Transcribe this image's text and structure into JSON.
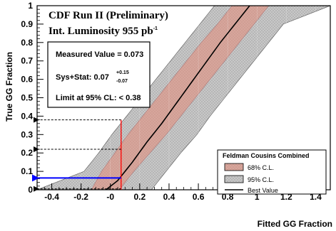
{
  "chart_data": {
    "type": "line",
    "title_line1": "CDF Run II (Preliminary)",
    "title_line2_prefix": "Int. Luminosity 955 pb",
    "title_line2_sup": "-1",
    "xlabel": "Fitted GG Fraction",
    "ylabel": "True GG Fraction",
    "xlim": [
      -0.5,
      1.5
    ],
    "ylim": [
      0,
      1
    ],
    "x_ticks": [
      -0.4,
      -0.2,
      0,
      0.2,
      0.4,
      0.6,
      0.8,
      1,
      1.2,
      1.4
    ],
    "x_tick_labels": [
      "-0.4",
      "-0.2",
      "-0",
      "0.2",
      "0.4",
      "0.6",
      "0.8",
      "1",
      "1.2",
      "1.4"
    ],
    "y_ticks": [
      0,
      0.1,
      0.2,
      0.3,
      0.4,
      0.5,
      0.6,
      0.7,
      0.8,
      0.9,
      1
    ],
    "y_tick_labels": [
      "0",
      "0.1",
      "0.2",
      "0.3",
      "0.4",
      "0.5",
      "0.6",
      "0.7",
      "0.8",
      "0.9",
      "1"
    ],
    "best_value": {
      "x": [
        -0.03,
        0.05,
        0.15,
        0.25,
        0.35,
        0.45,
        0.55,
        0.65,
        0.75,
        0.85,
        0.95
      ],
      "y": [
        0.0,
        0.05,
        0.15,
        0.26,
        0.36,
        0.47,
        0.58,
        0.69,
        0.8,
        0.9,
        1.0
      ]
    },
    "band_68": {
      "x_lower": [
        -0.13,
        -0.06,
        0.03,
        0.12,
        0.22,
        0.32,
        0.42,
        0.52,
        0.62,
        0.73,
        0.83
      ],
      "x_upper": [
        0.06,
        0.16,
        0.27,
        0.38,
        0.48,
        0.58,
        0.68,
        0.78,
        0.88,
        0.98,
        1.08
      ],
      "y": [
        0.0,
        0.1,
        0.2,
        0.3,
        0.4,
        0.5,
        0.6,
        0.7,
        0.8,
        0.9,
        1.0
      ]
    },
    "band_95": {
      "x_lower": [
        -0.5,
        -0.18,
        -0.08,
        0.01,
        0.11,
        0.21,
        0.31,
        0.41,
        0.51,
        0.61,
        0.71
      ],
      "x_upper": [
        0.28,
        0.38,
        0.48,
        0.59,
        0.68,
        0.78,
        0.88,
        0.98,
        1.08,
        1.18,
        1.5
      ],
      "y": [
        0.0,
        0.1,
        0.2,
        0.3,
        0.4,
        0.5,
        0.6,
        0.7,
        0.8,
        0.9,
        1.0
      ]
    },
    "measured_value": 0.073,
    "interval_y": [
      0.064,
      0.22,
      0.38
    ],
    "legend": {
      "title": "Feldman Cousins Combined",
      "entries": [
        "68% C.L.",
        "95% C.L.",
        "Best Value"
      ],
      "placement": "bottom-right"
    },
    "info_box": {
      "line1": "Measured Value = 0.073",
      "line2_prefix": "Sys+Stat: 0.07",
      "line2_sup": "+0.15",
      "line2_sub": "-0.07",
      "line3": "Limit at 95% CL: < 0.38"
    },
    "colors": {
      "band_68": "#d4a49a",
      "band_95": "#c9c9c9",
      "best_value": "#000000",
      "measured_line": "#ff0000",
      "measured_arrow": "#0000ff"
    }
  }
}
